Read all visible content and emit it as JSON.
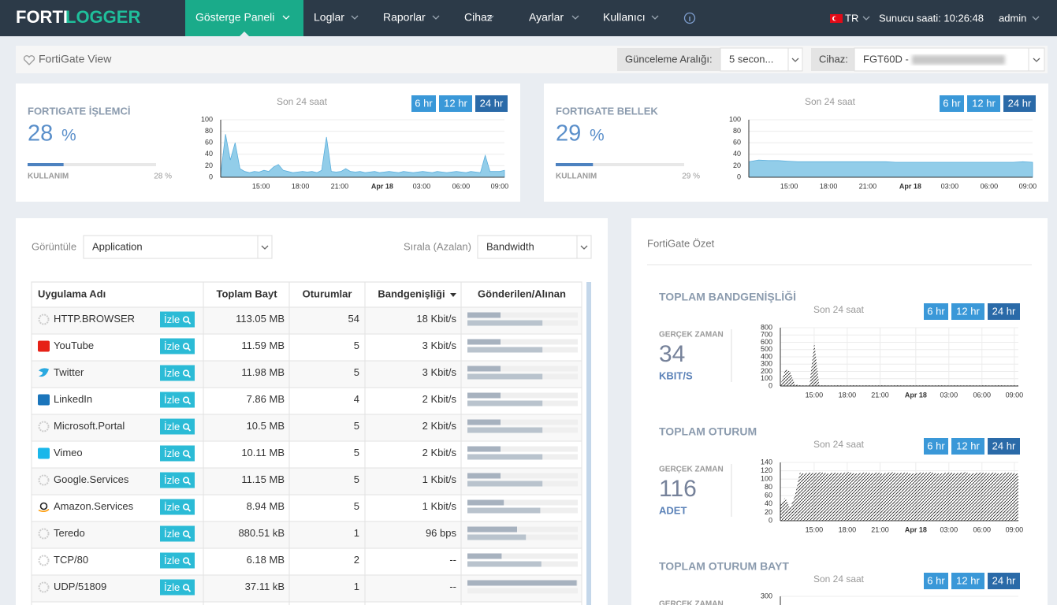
{
  "nav": {
    "logo_a": "FORTI",
    "logo_b": "LOGGER",
    "items": [
      "Gösterge Paneli",
      "Loglar",
      "Raporlar",
      "Cihaz",
      "Ayarlar",
      "Kullanıcı"
    ],
    "lang": "TR",
    "server_time": "Sunucu saati: 10:26:48",
    "user": "admin"
  },
  "toolbar": {
    "title": "FortiGate View",
    "interval_label": "Günceleme Aralığı:",
    "interval_value": "5 secon...",
    "device_label": "Cihaz:",
    "device_value": "FGT60D -"
  },
  "widgets": [
    {
      "title": "FORTIGATE İŞLEMCİ",
      "value": 28,
      "unit": "%",
      "usage_label": "KULLANIM",
      "usage_text": "28 %",
      "chart": {
        "type": "area",
        "subtitle": "Son 24 saat",
        "ranges": [
          "6 hr",
          "12 hr",
          "24 hr"
        ],
        "active_range": 2,
        "fill": "#92cde9",
        "stroke": "#5aaedc",
        "xlabels": [
          "15:00",
          "18:00",
          "21:00",
          "Apr 18",
          "03:00",
          "06:00",
          "09:00"
        ],
        "ylim": [
          0,
          100
        ],
        "yticks": [
          0,
          20,
          40,
          60,
          80,
          100
        ],
        "values": [
          5,
          75,
          30,
          60,
          15,
          10,
          8,
          10,
          9,
          12,
          10,
          18,
          22,
          12,
          10,
          8,
          9,
          10,
          9,
          10,
          8,
          12,
          70,
          10,
          9,
          10,
          15,
          10,
          9,
          10,
          8,
          9,
          10,
          8,
          9,
          10,
          9,
          8,
          10,
          9,
          8,
          9,
          10,
          9,
          8,
          10,
          9,
          8,
          9,
          10,
          9,
          8,
          10,
          9,
          8,
          38,
          10,
          10,
          10,
          12
        ]
      }
    },
    {
      "title": "FORTIGATE BELLEK",
      "value": 29,
      "unit": "%",
      "usage_label": "KULLANIM",
      "usage_text": "29 %",
      "chart": {
        "type": "area",
        "subtitle": "Son 24 saat",
        "ranges": [
          "6 hr",
          "12 hr",
          "24 hr"
        ],
        "active_range": 2,
        "fill": "#92cde9",
        "stroke": "#5aaedc",
        "xlabels": [
          "15:00",
          "18:00",
          "21:00",
          "Apr 18",
          "03:00",
          "06:00",
          "09:00"
        ],
        "ylim": [
          0,
          100
        ],
        "yticks": [
          0,
          20,
          40,
          60,
          80,
          100
        ],
        "values": [
          27,
          30,
          29,
          29,
          28,
          27,
          27,
          27,
          27,
          27,
          27,
          27,
          27,
          27,
          27,
          26,
          26,
          26,
          26,
          26,
          26,
          26,
          26,
          26,
          26,
          26,
          26,
          26,
          27,
          26
        ]
      }
    }
  ],
  "table": {
    "view_label": "Görüntüle",
    "view_value": "Application",
    "sort_label": "Sırala (Azalan)",
    "sort_value": "Bandwidth",
    "columns": [
      "Uygulama Adı",
      "Toplam Bayt",
      "Oturumlar",
      "Bandgenişliği",
      "Gönderilen/Alınan"
    ],
    "action_label": "İzle",
    "rows": [
      {
        "name": "HTTP.BROWSER",
        "bytes": "113.05 MB",
        "sessions": 54,
        "bandwidth": "18 Kbit/s",
        "sent": 30,
        "received": 68
      },
      {
        "name": "YouTube",
        "bytes": "11.59 MB",
        "sessions": 5,
        "bandwidth": "3 Kbit/s",
        "sent": 30,
        "received": 68
      },
      {
        "name": "Twitter",
        "bytes": "11.98 MB",
        "sessions": 5,
        "bandwidth": "3 Kbit/s",
        "sent": 30,
        "received": 68
      },
      {
        "name": "LinkedIn",
        "bytes": "7.86 MB",
        "sessions": 4,
        "bandwidth": "2 Kbit/s",
        "sent": 30,
        "received": 68
      },
      {
        "name": "Microsoft.Portal",
        "bytes": "10.5 MB",
        "sessions": 5,
        "bandwidth": "2 Kbit/s",
        "sent": 30,
        "received": 68
      },
      {
        "name": "Vimeo",
        "bytes": "10.11 MB",
        "sessions": 5,
        "bandwidth": "2 Kbit/s",
        "sent": 30,
        "received": 68
      },
      {
        "name": "Google.Services",
        "bytes": "11.15 MB",
        "sessions": 5,
        "bandwidth": "1 Kbit/s",
        "sent": 30,
        "received": 68
      },
      {
        "name": "Amazon.Services",
        "bytes": "8.94 MB",
        "sessions": 5,
        "bandwidth": "1 Kbit/s",
        "sent": 33,
        "received": 66
      },
      {
        "name": "Teredo",
        "bytes": "880.51 kB",
        "sessions": 1,
        "bandwidth": "96 bps",
        "sent": 45,
        "received": 53
      },
      {
        "name": "TCP/80",
        "bytes": "6.18 MB",
        "sessions": 2,
        "bandwidth": "--",
        "sent": 31,
        "received": 67
      },
      {
        "name": "UDP/51809",
        "bytes": "37.11 kB",
        "sessions": 1,
        "bandwidth": "--",
        "sent": 99,
        "received": 0
      }
    ]
  },
  "summary": {
    "title": "FortiGate Özet",
    "sections": [
      {
        "title": "TOPLAM BANDGENİŞLİĞİ",
        "realtime_label": "GERÇEK ZAMAN",
        "value": 34,
        "unit": "KBIT/S",
        "chart": {
          "type": "area",
          "subtitle": "Son 24 saat",
          "ranges": [
            "6 hr",
            "12 hr",
            "24 hr"
          ],
          "active_range": 2,
          "pattern": "hatch",
          "xlabels": [
            "15:00",
            "18:00",
            "21:00",
            "Apr 18",
            "03:00",
            "06:00",
            "09:00"
          ],
          "ylim": [
            0,
            800
          ],
          "yticks": [
            0,
            100,
            200,
            300,
            400,
            500,
            600,
            700,
            800
          ],
          "values": [
            10,
            230,
            200,
            20,
            10,
            8,
            10,
            600,
            9,
            10,
            9,
            8,
            10,
            9,
            8,
            10,
            9,
            8,
            10,
            9,
            8,
            10,
            9,
            8,
            10,
            9,
            8,
            10,
            9,
            8,
            10,
            9,
            8,
            10,
            9,
            8,
            10,
            9,
            8,
            10,
            9,
            8,
            10,
            9,
            8,
            10,
            9,
            8,
            10,
            9
          ]
        }
      },
      {
        "title": "TOPLAM OTURUM",
        "realtime_label": "GERÇEK ZAMAN",
        "value": 116,
        "unit": "ADET",
        "chart": {
          "type": "area",
          "subtitle": "Son 24 saat",
          "ranges": [
            "6 hr",
            "12 hr",
            "24 hr"
          ],
          "active_range": 2,
          "pattern": "hatch",
          "xlabels": [
            "15:00",
            "18:00",
            "21:00",
            "Apr 18",
            "03:00",
            "06:00",
            "09:00"
          ],
          "ylim": [
            0,
            140
          ],
          "yticks": [
            0,
            20,
            40,
            60,
            80,
            100,
            120,
            140
          ],
          "values": [
            40,
            55,
            30,
            60,
            115,
            113,
            116,
            114,
            117,
            115,
            113,
            116,
            114,
            115,
            117,
            114,
            113,
            116,
            115,
            114,
            116,
            113,
            115,
            117,
            114,
            115,
            116,
            113,
            114,
            116,
            115,
            117,
            114,
            113,
            115,
            116,
            114,
            115,
            117,
            113,
            114,
            116,
            115,
            114,
            116,
            113,
            115,
            116,
            114,
            113
          ]
        }
      },
      {
        "title": "TOPLAM OTURUM BAYT",
        "realtime_label": "GERÇEK ZAMAN",
        "chart": {
          "type": "area",
          "subtitle": "Son 24 saat",
          "ranges": [
            "6 hr",
            "12 hr",
            "24 hr"
          ],
          "active_range": 2,
          "pattern": "hatch",
          "ylim": [
            0,
            300
          ],
          "yticks": [
            300
          ]
        }
      }
    ]
  }
}
